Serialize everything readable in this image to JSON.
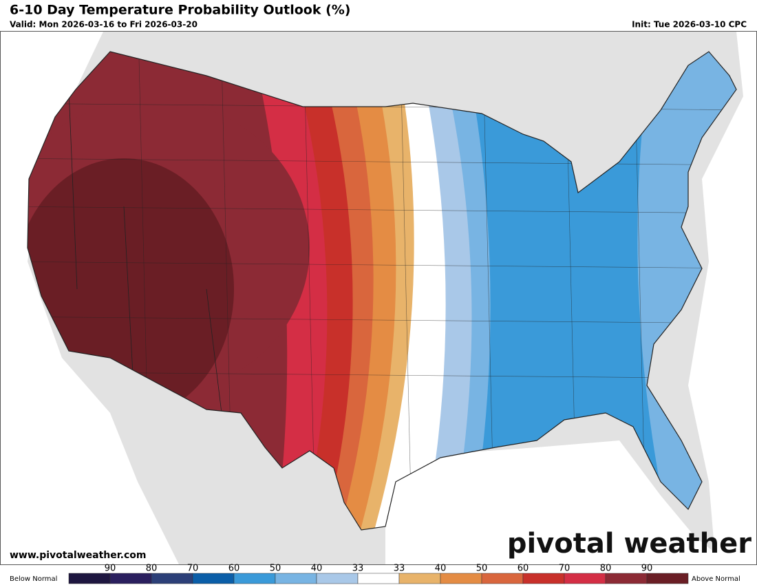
{
  "header": {
    "title": "6-10 Day Temperature Probability Outlook (%)",
    "valid": "Valid: Mon 2026-03-16 to Fri 2026-03-20",
    "init": "Init: Tue 2026-03-10 CPC"
  },
  "footer": {
    "website": "www.pivotalweather.com",
    "brand": "pivotal weather"
  },
  "legend": {
    "left_label": "Below Normal",
    "right_label": "Above Normal",
    "ticks": [
      "90",
      "80",
      "70",
      "60",
      "50",
      "40",
      "33",
      "33",
      "40",
      "50",
      "60",
      "70",
      "80",
      "90"
    ],
    "colors": [
      "#1e1640",
      "#2a1f5e",
      "#2c3f78",
      "#0b5ea8",
      "#3a9ad9",
      "#78b4e3",
      "#a9c8e8",
      "#ffffff",
      "#e8b36a",
      "#e48c44",
      "#d9663d",
      "#c8302a",
      "#d42e45",
      "#8c2a35",
      "#6a1e25"
    ]
  }
}
